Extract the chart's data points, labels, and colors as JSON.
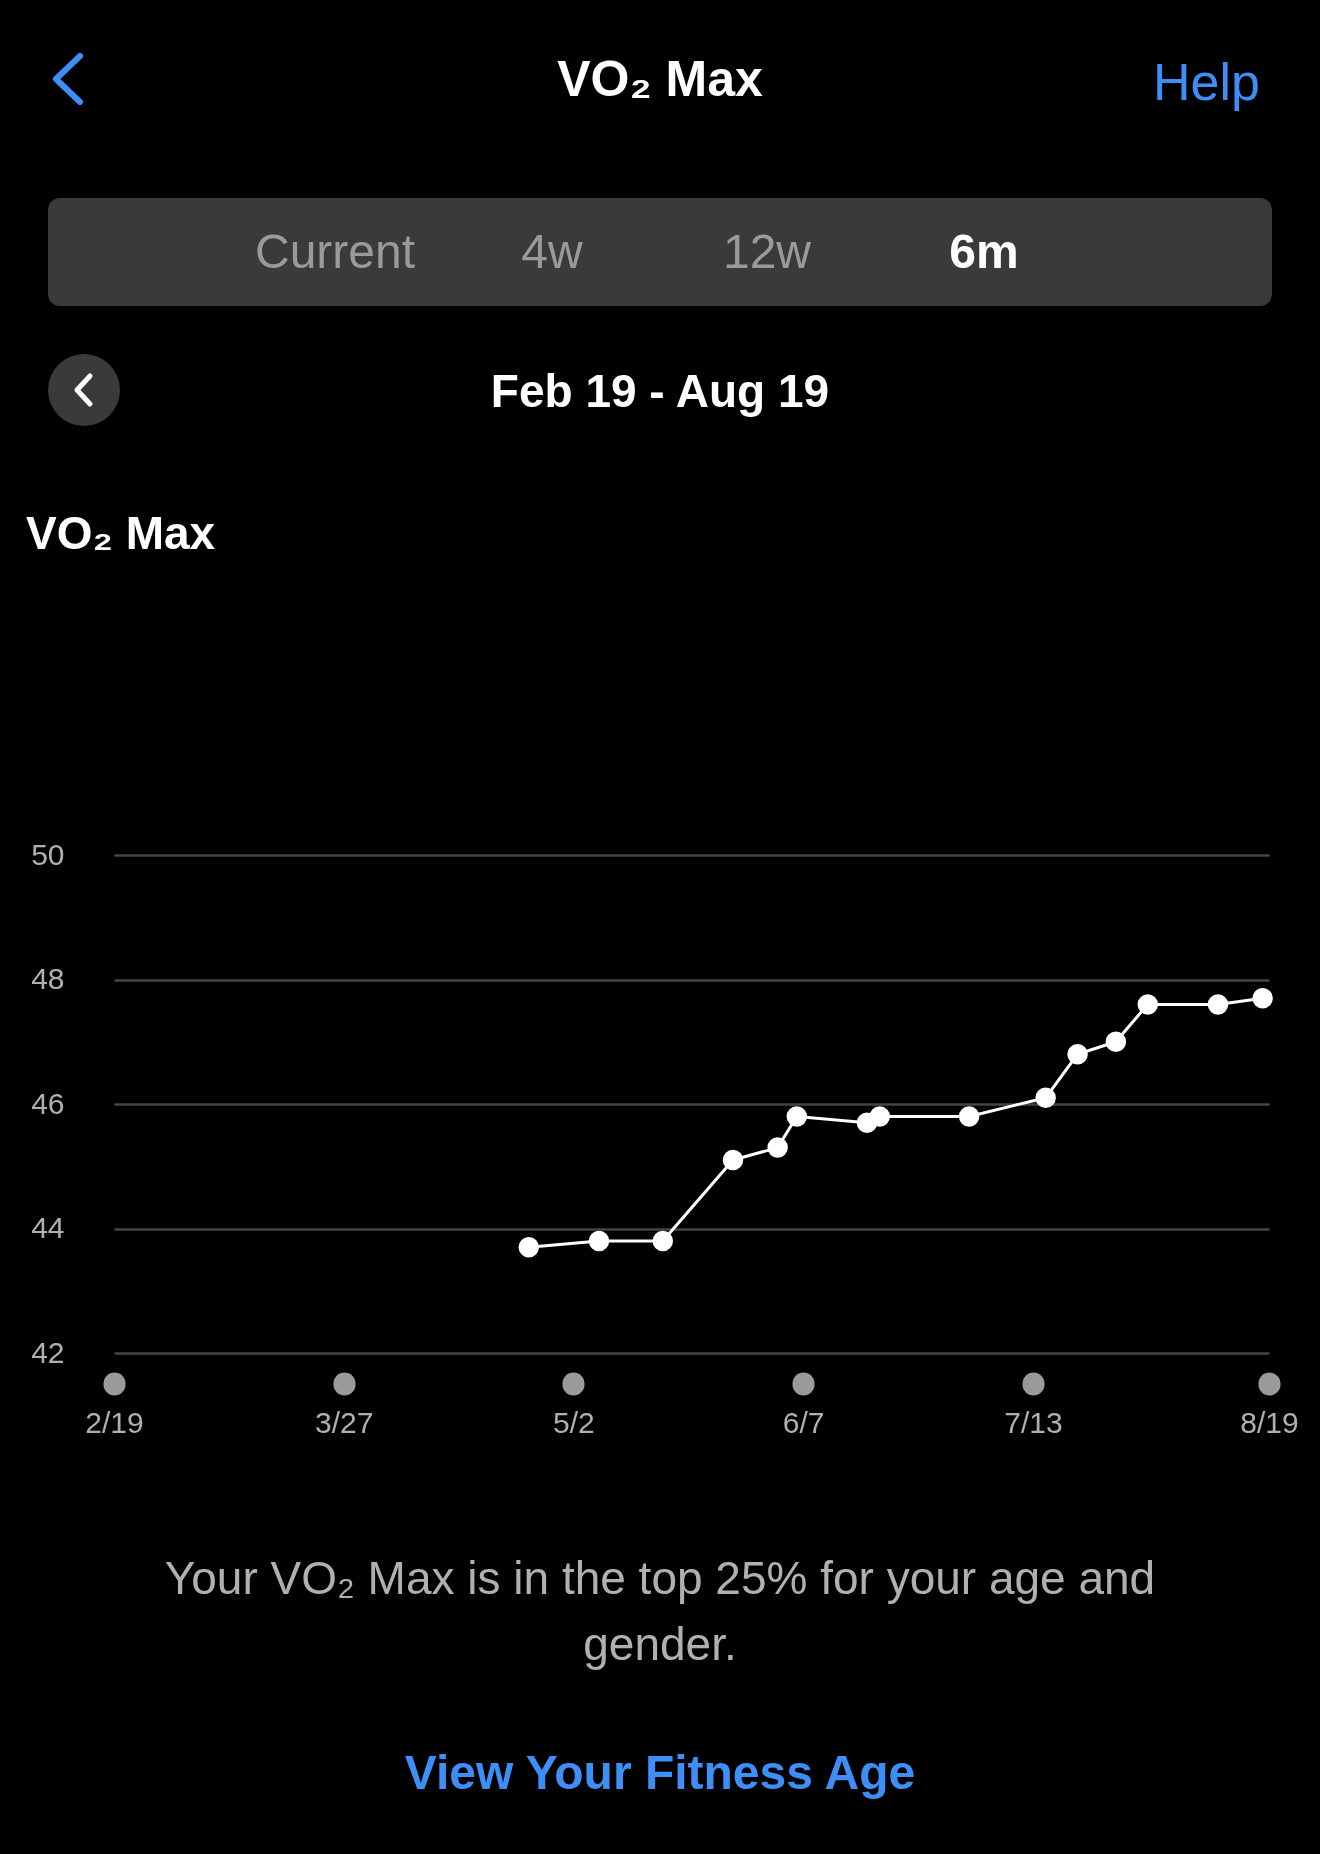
{
  "chart_data": {
    "type": "line",
    "title": "VO₂ Max",
    "subtitle": "Feb 19 - Aug 19",
    "annotations": [
      "VO₂ Max",
      "Help",
      "Current",
      "4w",
      "12w",
      "6m",
      "Your VO₂ Max is in the top 25% for your age and gender.",
      "View Your Fitness Age"
    ],
    "x": [
      "--04-25",
      "--05-06",
      "--05-16",
      "--05-27",
      "--06-03",
      "--06-06",
      "--06-17",
      "--06-19",
      "--07-03",
      "--07-15",
      "--07-20",
      "--07-26",
      "--07-31",
      "--08-11",
      "--08-18"
    ],
    "series": [
      {
        "color": "#ffffff",
        "values": [
          43.7,
          43.8,
          43.8,
          45.1,
          45.3,
          45.8,
          45.7,
          45.8,
          45.8,
          46.1,
          46.8,
          47.0,
          47.6,
          47.6,
          47.7
        ]
      }
    ],
    "xlim": [
      "--02-19",
      "--08-19"
    ],
    "xticks": [
      {
        "value": "--02-19",
        "label": "2/19"
      },
      {
        "value": "--03-27",
        "label": "3/27"
      },
      {
        "value": "--05-02",
        "label": "5/2"
      },
      {
        "value": "--06-07",
        "label": "6/7"
      },
      {
        "value": "--07-13",
        "label": "7/13"
      },
      {
        "value": "--08-19",
        "label": "8/19"
      }
    ],
    "ylim": [
      42,
      50
    ],
    "yticks": [
      42,
      44,
      46,
      48,
      50
    ],
    "grid": "y",
    "marker": "circle",
    "line_style": "solid"
  }
}
